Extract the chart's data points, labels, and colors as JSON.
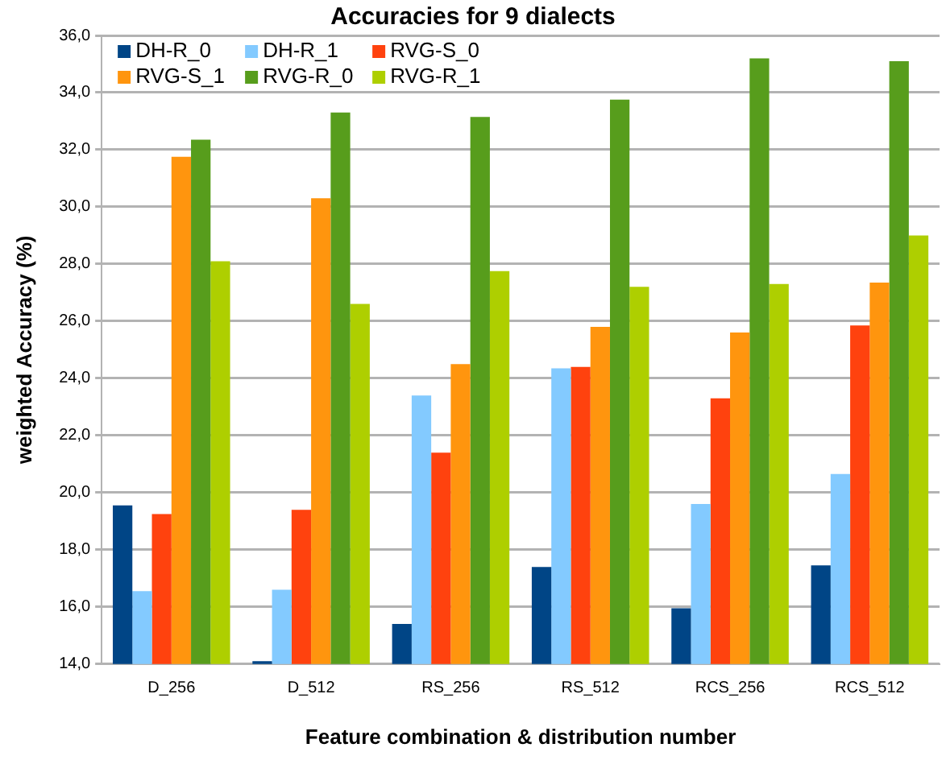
{
  "chart_data": {
    "type": "bar",
    "title": "Accuracies for 9 dialects",
    "xlabel": "Feature combination & distribution number",
    "ylabel": "weighted Accuracy (%)",
    "categories": [
      "D_256",
      "D_512",
      "RS_256",
      "RS_512",
      "RCS_256",
      "RCS_512"
    ],
    "series": [
      {
        "name": "DH-R_0",
        "color": "#004586",
        "values": [
          19.55,
          14.1,
          15.4,
          17.4,
          15.95,
          17.45
        ]
      },
      {
        "name": "DH-R_1",
        "color": "#83caff",
        "values": [
          16.55,
          16.6,
          23.4,
          24.35,
          19.6,
          20.65
        ]
      },
      {
        "name": "RVG-S_0",
        "color": "#ff420e",
        "values": [
          19.25,
          19.4,
          21.4,
          24.4,
          23.3,
          25.85
        ]
      },
      {
        "name": "RVG-S_1",
        "color": "#ff950e",
        "values": [
          31.75,
          30.3,
          24.5,
          25.8,
          25.6,
          27.35
        ]
      },
      {
        "name": "RVG-R_0",
        "color": "#579d1c",
        "values": [
          32.35,
          33.3,
          33.15,
          33.75,
          35.2,
          35.1
        ]
      },
      {
        "name": "RVG-R_1",
        "color": "#aecf00",
        "values": [
          28.1,
          26.6,
          27.75,
          27.2,
          27.3,
          29.0
        ]
      }
    ],
    "ylim": [
      14,
      36
    ],
    "yticks": [
      {
        "value": 14,
        "label": "14,0"
      },
      {
        "value": 16,
        "label": "16,0"
      },
      {
        "value": 18,
        "label": "18,0"
      },
      {
        "value": 20,
        "label": "20,0"
      },
      {
        "value": 22,
        "label": "22,0"
      },
      {
        "value": 24,
        "label": "24,0"
      },
      {
        "value": 26,
        "label": "26,0"
      },
      {
        "value": 28,
        "label": "28,0"
      },
      {
        "value": 30,
        "label": "30,0"
      },
      {
        "value": 32,
        "label": "32,0"
      },
      {
        "value": 34,
        "label": "34,0"
      },
      {
        "value": 36,
        "label": "36,0"
      }
    ],
    "grid": "y",
    "legend": "top left"
  }
}
